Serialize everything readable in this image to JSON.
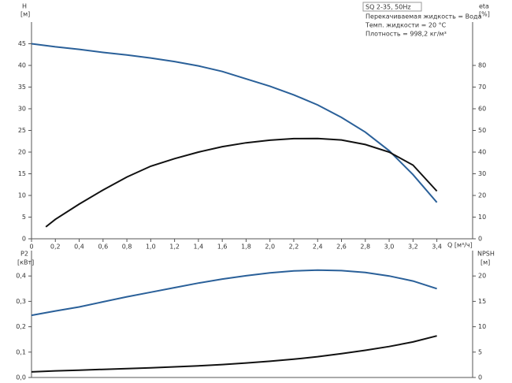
{
  "chart_data": [
    {
      "type": "line",
      "title": "SQ 2-35, 50Hz",
      "notes": [
        "Перекачиваемая жидкость = Вода",
        "Темп. жидкости = 20 °C",
        "Плотность = 998,2 кг/м³"
      ],
      "ylabel": "H",
      "ylabel_unit": "[м]",
      "y2label": "eta",
      "y2label_unit": "[%]",
      "xlabel": "Q [м³/ч]",
      "xlim": [
        0,
        3.7
      ],
      "xticks": [
        0,
        {
          "value": 0.2,
          "label": "0,2"
        },
        {
          "value": 0.4,
          "label": "0,4"
        },
        {
          "value": 0.6,
          "label": "0,6"
        },
        {
          "value": 0.8,
          "label": "0,8"
        },
        {
          "value": 1.0,
          "label": "1,0"
        },
        {
          "value": 1.2,
          "label": "1,2"
        },
        {
          "value": 1.4,
          "label": "1,4"
        },
        {
          "value": 1.6,
          "label": "1,6"
        },
        {
          "value": 1.8,
          "label": "1,8"
        },
        {
          "value": 2.0,
          "label": "2,0"
        },
        {
          "value": 2.2,
          "label": "2,2"
        },
        {
          "value": 2.4,
          "label": "2,4"
        },
        {
          "value": 2.6,
          "label": "2,6"
        },
        {
          "value": 2.8,
          "label": "2,8"
        },
        {
          "value": 3.0,
          "label": "3,0"
        },
        {
          "value": 3.2,
          "label": "3,2"
        },
        {
          "value": 3.4,
          "label": "3,4"
        }
      ],
      "ylim": [
        0,
        50
      ],
      "yticks": [
        0,
        5,
        10,
        15,
        20,
        25,
        30,
        35,
        40,
        45
      ],
      "y2lim": [
        0,
        100
      ],
      "y2ticks": [
        0,
        10,
        20,
        30,
        40,
        50,
        60,
        70,
        80
      ],
      "series": [
        {
          "name": "H",
          "color": "#2a6099",
          "axis": "y",
          "x": [
            0,
            0.2,
            0.4,
            0.6,
            0.8,
            1.0,
            1.2,
            1.4,
            1.6,
            1.8,
            2.0,
            2.2,
            2.4,
            2.6,
            2.8,
            3.0,
            3.2,
            3.4
          ],
          "values": [
            45,
            44.3,
            43.7,
            43.0,
            42.4,
            41.7,
            40.9,
            39.9,
            38.6,
            36.9,
            35.2,
            33.2,
            30.9,
            28.0,
            24.6,
            20.3,
            14.8,
            8.4
          ]
        },
        {
          "name": "eta",
          "color": "#111111",
          "axis": "y2",
          "x": [
            0.12,
            0.2,
            0.4,
            0.6,
            0.8,
            1.0,
            1.2,
            1.4,
            1.6,
            1.8,
            2.0,
            2.2,
            2.4,
            2.6,
            2.8,
            3.0,
            3.2,
            3.4
          ],
          "values": [
            5.5,
            9,
            16,
            22.5,
            28.5,
            33.5,
            37,
            40,
            42.5,
            44.3,
            45.5,
            46.2,
            46.3,
            45.6,
            43.5,
            40,
            34,
            22
          ]
        }
      ]
    },
    {
      "type": "line",
      "ylabel": "P2",
      "ylabel_unit": "[кВт]",
      "y2label": "NPSH",
      "y2label_unit": "[м]",
      "xlim": [
        0,
        3.7
      ],
      "ylim": [
        0,
        0.5
      ],
      "yticks": [
        {
          "value": 0,
          "label": "0,0"
        },
        {
          "value": 0.1,
          "label": "0,1"
        },
        {
          "value": 0.2,
          "label": "0,2"
        },
        {
          "value": 0.3,
          "label": "0,3"
        },
        {
          "value": 0.4,
          "label": "0,4"
        }
      ],
      "y2lim": [
        0,
        25
      ],
      "y2ticks": [
        0,
        5,
        10,
        15,
        20
      ],
      "series": [
        {
          "name": "P2",
          "color": "#2a6099",
          "axis": "y",
          "x": [
            0,
            0.2,
            0.4,
            0.6,
            0.8,
            1.0,
            1.2,
            1.4,
            1.6,
            1.8,
            2.0,
            2.2,
            2.4,
            2.6,
            2.8,
            3.0,
            3.2,
            3.4
          ],
          "values": [
            0.245,
            0.262,
            0.278,
            0.298,
            0.318,
            0.336,
            0.354,
            0.372,
            0.388,
            0.401,
            0.412,
            0.42,
            0.423,
            0.421,
            0.414,
            0.4,
            0.38,
            0.35
          ]
        },
        {
          "name": "NPSH",
          "color": "#111111",
          "axis": "y2",
          "x": [
            0,
            0.2,
            0.4,
            0.6,
            0.8,
            1.0,
            1.2,
            1.4,
            1.6,
            1.8,
            2.0,
            2.2,
            2.4,
            2.6,
            2.8,
            3.0,
            3.2,
            3.4
          ],
          "values": [
            1.1,
            1.3,
            1.45,
            1.6,
            1.75,
            1.9,
            2.1,
            2.3,
            2.55,
            2.85,
            3.2,
            3.6,
            4.1,
            4.7,
            5.35,
            6.1,
            7.0,
            8.2
          ]
        }
      ]
    }
  ]
}
